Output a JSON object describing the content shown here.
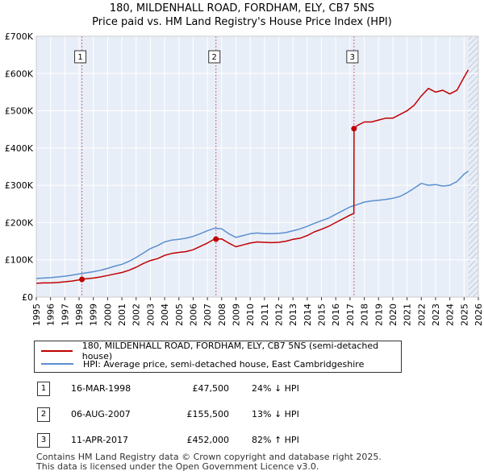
{
  "title": {
    "line1": "180, MILDENHALL ROAD, FORDHAM, ELY, CB7 5NS",
    "line2": "Price paid vs. HM Land Registry's House Price Index (HPI)"
  },
  "colors": {
    "price_line": "#c00000",
    "hpi_line": "#5b8fd0",
    "plot_bg": "#e8eef8",
    "marker_line": "#e06060",
    "grid": "#ffffff"
  },
  "legend": {
    "price_label": "180, MILDENHALL ROAD, FORDHAM, ELY, CB7 5NS (semi-detached house)",
    "hpi_label": "HPI: Average price, semi-detached house, East Cambridgeshire"
  },
  "transactions": [
    {
      "num": "1",
      "date": "16-MAR-1998",
      "price": "£47,500",
      "hpi_diff": "24% ↓ HPI"
    },
    {
      "num": "2",
      "date": "06-AUG-2007",
      "price": "£155,500",
      "hpi_diff": "13% ↓ HPI"
    },
    {
      "num": "3",
      "date": "11-APR-2017",
      "price": "£452,000",
      "hpi_diff": "82% ↑ HPI"
    }
  ],
  "footer": {
    "line1": "Contains HM Land Registry data © Crown copyright and database right 2025.",
    "line2": "This data is licensed under the Open Government Licence v3.0."
  },
  "chart_data": {
    "type": "line",
    "title": "180, MILDENHALL ROAD, FORDHAM, ELY, CB7 5NS",
    "subtitle": "Price paid vs. HM Land Registry's House Price Index (HPI)",
    "xlabel": "",
    "ylabel": "",
    "xlim": [
      1995,
      2026
    ],
    "ylim": [
      0,
      700000
    ],
    "x_ticks": [
      1995,
      1996,
      1997,
      1998,
      1999,
      2000,
      2001,
      2002,
      2003,
      2004,
      2005,
      2006,
      2007,
      2008,
      2009,
      2010,
      2011,
      2012,
      2013,
      2014,
      2015,
      2016,
      2017,
      2018,
      2019,
      2020,
      2021,
      2022,
      2023,
      2024,
      2025,
      2026
    ],
    "y_ticks": [
      0,
      100000,
      200000,
      300000,
      400000,
      500000,
      600000,
      700000
    ],
    "y_tick_labels": [
      "£0",
      "£100K",
      "£200K",
      "£300K",
      "£400K",
      "£500K",
      "£600K",
      "£700K"
    ],
    "grid": true,
    "data_end_year": 2025.3,
    "series": [
      {
        "name": "180, MILDENHALL ROAD, FORDHAM, ELY, CB7 5NS (semi-detached house)",
        "color": "#c00000",
        "x": [
          1995,
          1995.5,
          1996,
          1996.5,
          1997,
          1997.5,
          1998.2,
          1998.5,
          1999,
          1999.5,
          2000,
          2000.5,
          2001,
          2001.5,
          2002,
          2002.5,
          2003,
          2003.5,
          2004,
          2004.5,
          2005,
          2005.5,
          2006,
          2006.5,
          2007,
          2007.6,
          2007.7,
          2008,
          2008.5,
          2009,
          2009.5,
          2010,
          2010.5,
          2011,
          2011.5,
          2012,
          2012.5,
          2013,
          2013.5,
          2014,
          2014.5,
          2015,
          2015.5,
          2016,
          2016.5,
          2017.0,
          2017.27,
          2017.28,
          2017.5,
          2018,
          2018.5,
          2019,
          2019.5,
          2020,
          2020.5,
          2021,
          2021.5,
          2022,
          2022.5,
          2023,
          2023.5,
          2024,
          2024.5,
          2025,
          2025.3
        ],
        "y": [
          37000,
          38000,
          38000,
          39000,
          41000,
          43000,
          47500,
          49000,
          51000,
          54000,
          58000,
          62000,
          66000,
          72000,
          80000,
          90000,
          98000,
          103000,
          112000,
          117000,
          120000,
          122000,
          127000,
          136000,
          145000,
          158000,
          155500,
          156000,
          145000,
          135000,
          140000,
          145000,
          148000,
          147000,
          146000,
          147000,
          150000,
          155000,
          158000,
          165000,
          175000,
          182000,
          190000,
          200000,
          210000,
          220000,
          225000,
          452000,
          460000,
          470000,
          470000,
          475000,
          480000,
          480000,
          490000,
          500000,
          515000,
          540000,
          560000,
          550000,
          555000,
          545000,
          555000,
          590000,
          610000
        ]
      },
      {
        "name": "HPI: Average price, semi-detached house, East Cambridgeshire",
        "color": "#5b8fd0",
        "x": [
          1995,
          1995.5,
          1996,
          1996.5,
          1997,
          1997.5,
          1998,
          1998.5,
          1999,
          1999.5,
          2000,
          2000.5,
          2001,
          2001.5,
          2002,
          2002.5,
          2003,
          2003.5,
          2004,
          2004.5,
          2005,
          2005.5,
          2006,
          2006.5,
          2007,
          2007.5,
          2008,
          2008.5,
          2009,
          2009.5,
          2010,
          2010.5,
          2011,
          2011.5,
          2012,
          2012.5,
          2013,
          2013.5,
          2014,
          2014.5,
          2015,
          2015.5,
          2016,
          2016.5,
          2017,
          2017.5,
          2018,
          2018.5,
          2019,
          2019.5,
          2020,
          2020.5,
          2021,
          2021.5,
          2022,
          2022.5,
          2023,
          2023.5,
          2024,
          2024.5,
          2025,
          2025.3
        ],
        "y": [
          50000,
          51000,
          52000,
          54000,
          56000,
          59000,
          62000,
          65000,
          68000,
          72000,
          77000,
          83000,
          88000,
          96000,
          106000,
          118000,
          130000,
          138000,
          148000,
          153000,
          155000,
          158000,
          163000,
          170000,
          178000,
          185000,
          183000,
          170000,
          160000,
          165000,
          170000,
          172000,
          170000,
          170000,
          171000,
          173000,
          178000,
          183000,
          190000,
          198000,
          205000,
          212000,
          222000,
          232000,
          242000,
          248000,
          255000,
          258000,
          260000,
          262000,
          265000,
          270000,
          280000,
          292000,
          305000,
          300000,
          302000,
          298000,
          300000,
          310000,
          330000,
          338000
        ]
      }
    ],
    "sale_markers": [
      {
        "label": "1",
        "x": 1998.2,
        "y": 47500
      },
      {
        "label": "2",
        "x": 2007.6,
        "y": 155500
      },
      {
        "label": "3",
        "x": 2017.28,
        "y": 452000
      }
    ]
  }
}
